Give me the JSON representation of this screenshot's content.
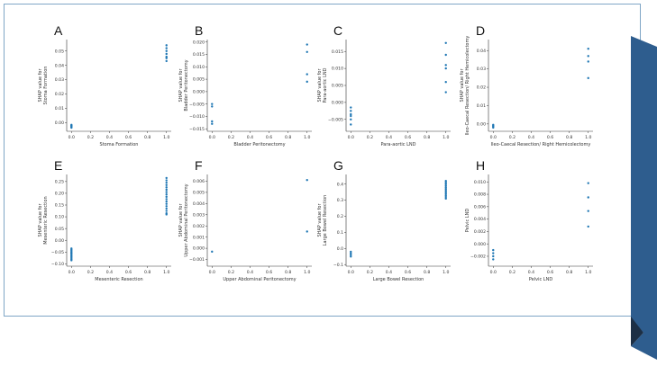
{
  "colors": {
    "point": "#1f77b4",
    "frame_border": "#7fa6c6",
    "ribbon": "#2e5d8e",
    "ribbon_shadow": "#1c2f45"
  },
  "chart_data": [
    {
      "panel": "A",
      "type": "scatter",
      "xlabel": "Stoma Formation",
      "ylabel": [
        "SHAP value for",
        "Stoma Formation"
      ],
      "xlim": [
        -0.05,
        1.05
      ],
      "ylim": [
        -0.006,
        0.058
      ],
      "xticks": [
        "0.0",
        "0.2",
        "0.4",
        "0.6",
        "0.8",
        "1.0"
      ],
      "yticks": [
        0,
        0.01,
        0.02,
        0.03,
        0.04,
        0.05
      ],
      "ytick_labels": [
        "0.00",
        "0.01",
        "0.02",
        "0.03",
        "0.04",
        "0.05"
      ],
      "points": [
        [
          0,
          -0.0015
        ],
        [
          0,
          -0.002
        ],
        [
          0,
          -0.0025
        ],
        [
          0,
          -0.003
        ],
        [
          0,
          -0.0035
        ],
        [
          1,
          0.054
        ],
        [
          1,
          0.052
        ],
        [
          1,
          0.05
        ],
        [
          1,
          0.048
        ],
        [
          1,
          0.046
        ],
        [
          1,
          0.045
        ],
        [
          1,
          0.043
        ]
      ]
    },
    {
      "panel": "B",
      "type": "scatter",
      "xlabel": "Bladder Peritonectomy",
      "ylabel": [
        "SHAP value for",
        "Bladder Peritonectomy"
      ],
      "xlim": [
        -0.05,
        1.05
      ],
      "ylim": [
        -0.016,
        0.021
      ],
      "xticks": [
        "0.0",
        "0.2",
        "0.4",
        "0.6",
        "0.8",
        "1.0"
      ],
      "yticks": [
        -0.015,
        -0.01,
        -0.005,
        0,
        0.005,
        0.01,
        0.015,
        0.02
      ],
      "ytick_labels": [
        "−0.015",
        "−0.010",
        "−0.005",
        "0.000",
        "0.005",
        "0.010",
        "0.015",
        "0.020"
      ],
      "points": [
        [
          0,
          -0.005
        ],
        [
          0,
          -0.006
        ],
        [
          0,
          -0.012
        ],
        [
          0,
          -0.013
        ],
        [
          1,
          0.019
        ],
        [
          1,
          0.016
        ],
        [
          1,
          0.007
        ],
        [
          1,
          0.004
        ]
      ]
    },
    {
      "panel": "C",
      "type": "scatter",
      "xlabel": "Para-aortic LND",
      "ylabel": [
        "SHAP value for",
        "Para-aortic LND"
      ],
      "xlim": [
        -0.05,
        1.05
      ],
      "ylim": [
        -0.0085,
        0.0185
      ],
      "xticks": [
        "0.0",
        "0.2",
        "0.4",
        "0.6",
        "0.8",
        "1.0"
      ],
      "yticks": [
        -0.005,
        0,
        0.005,
        0.01,
        0.015
      ],
      "ytick_labels": [
        "−0.005",
        "0.000",
        "0.005",
        "0.010",
        "0.015"
      ],
      "points": [
        [
          0,
          -0.0015
        ],
        [
          0,
          -0.0025
        ],
        [
          0,
          -0.0035
        ],
        [
          0,
          -0.004
        ],
        [
          0,
          -0.005
        ],
        [
          0,
          -0.0065
        ],
        [
          1,
          0.0175
        ],
        [
          1,
          0.014
        ],
        [
          1,
          0.011
        ],
        [
          1,
          0.01
        ],
        [
          1,
          0.006
        ],
        [
          1,
          0.003
        ]
      ]
    },
    {
      "panel": "D",
      "type": "scatter",
      "xlabel": "Ileo-Caecal Resection/ Right Hemicolectomy",
      "ylabel": [
        "SHAP value for",
        "Ileo-Caecal Resection/ Right Hemicolectomy"
      ],
      "xlim": [
        -0.05,
        1.05
      ],
      "ylim": [
        -0.004,
        0.046
      ],
      "xticks": [
        "0.0",
        "0.2",
        "0.4",
        "0.6",
        "0.8",
        "1.0"
      ],
      "yticks": [
        0,
        0.01,
        0.02,
        0.03,
        0.04
      ],
      "ytick_labels": [
        "0.00",
        "0.01",
        "0.02",
        "0.03",
        "0.04"
      ],
      "points": [
        [
          0,
          -0.0005
        ],
        [
          0,
          -0.001
        ],
        [
          0,
          -0.0015
        ],
        [
          0,
          -0.002
        ],
        [
          1,
          0.041
        ],
        [
          1,
          0.037
        ],
        [
          1,
          0.034
        ],
        [
          1,
          0.025
        ]
      ]
    },
    {
      "panel": "E",
      "type": "scatter",
      "xlabel": "Mesenteric Resection",
      "ylabel": [
        "SHAP value for",
        "Mesenteric Resection"
      ],
      "xlim": [
        -0.05,
        1.05
      ],
      "ylim": [
        -0.11,
        0.28
      ],
      "xticks": [
        "0.0",
        "0.2",
        "0.4",
        "0.6",
        "0.8",
        "1.0"
      ],
      "yticks": [
        -0.1,
        -0.05,
        0,
        0.05,
        0.1,
        0.15,
        0.2,
        0.25
      ],
      "ytick_labels": [
        "−0.10",
        "−0.05",
        "0.00",
        "0.05",
        "0.10",
        "0.15",
        "0.20",
        "0.25"
      ],
      "points": [
        [
          0,
          -0.035
        ],
        [
          0,
          -0.04
        ],
        [
          0,
          -0.045
        ],
        [
          0,
          -0.05
        ],
        [
          0,
          -0.055
        ],
        [
          0,
          -0.06
        ],
        [
          0,
          -0.065
        ],
        [
          0,
          -0.07
        ],
        [
          0,
          -0.075
        ],
        [
          0,
          -0.08
        ],
        [
          0,
          -0.085
        ],
        [
          1,
          0.265
        ],
        [
          1,
          0.255
        ],
        [
          1,
          0.245
        ],
        [
          1,
          0.235
        ],
        [
          1,
          0.225
        ],
        [
          1,
          0.215
        ],
        [
          1,
          0.205
        ],
        [
          1,
          0.195
        ],
        [
          1,
          0.185
        ],
        [
          1,
          0.175
        ],
        [
          1,
          0.165
        ],
        [
          1,
          0.155
        ],
        [
          1,
          0.145
        ],
        [
          1,
          0.135
        ],
        [
          1,
          0.125
        ],
        [
          1,
          0.115
        ],
        [
          1,
          0.11
        ]
      ]
    },
    {
      "panel": "F",
      "type": "scatter",
      "xlabel": "Upper Abdominal Peritonectomy",
      "ylabel": [
        "SHAP value for",
        "Upper Abdominal Peritonectomy"
      ],
      "xlim": [
        -0.05,
        1.05
      ],
      "ylim": [
        -0.0016,
        0.0066
      ],
      "xticks": [
        "0.0",
        "0.2",
        "0.4",
        "0.6",
        "0.8",
        "1.0"
      ],
      "yticks": [
        -0.001,
        0,
        0.001,
        0.002,
        0.003,
        0.004,
        0.005,
        0.006
      ],
      "ytick_labels": [
        "−0.001",
        "0.000",
        "0.001",
        "0.002",
        "0.003",
        "0.004",
        "0.005",
        "0.006"
      ],
      "points": [
        [
          0,
          -0.0003
        ],
        [
          1,
          0.0061
        ],
        [
          1,
          0.0015
        ]
      ]
    },
    {
      "panel": "G",
      "type": "scatter",
      "xlabel": "Large Bowel Resection",
      "ylabel": [
        "SHAP value for",
        "Large Bowel Resection"
      ],
      "xlim": [
        -0.05,
        1.05
      ],
      "ylim": [
        -0.11,
        0.46
      ],
      "xticks": [
        "0.0",
        "0.2",
        "0.4",
        "0.6",
        "0.8",
        "1.0"
      ],
      "yticks": [
        -0.1,
        0,
        0.1,
        0.2,
        0.3,
        0.4
      ],
      "ytick_labels": [
        "−0.1",
        "0.0",
        "0.1",
        "0.2",
        "0.3",
        "0.4"
      ],
      "points": [
        [
          0,
          -0.02
        ],
        [
          0,
          -0.03
        ],
        [
          0,
          -0.04
        ],
        [
          0,
          -0.05
        ],
        [
          1,
          0.42
        ],
        [
          1,
          0.41
        ],
        [
          1,
          0.4
        ],
        [
          1,
          0.39
        ],
        [
          1,
          0.38
        ],
        [
          1,
          0.37
        ],
        [
          1,
          0.36
        ],
        [
          1,
          0.35
        ],
        [
          1,
          0.34
        ],
        [
          1,
          0.33
        ],
        [
          1,
          0.32
        ],
        [
          1,
          0.31
        ]
      ]
    },
    {
      "panel": "H",
      "type": "scatter",
      "xlabel": "Pelvic LND",
      "ylabel": [
        "Pelvic LND"
      ],
      "xlim": [
        -0.05,
        1.05
      ],
      "ylim": [
        -0.0036,
        0.0112
      ],
      "xticks": [
        "0.0",
        "0.2",
        "0.4",
        "0.6",
        "0.8",
        "1.0"
      ],
      "yticks": [
        -0.002,
        0,
        0.002,
        0.004,
        0.006,
        0.008,
        0.01
      ],
      "ytick_labels": [
        "−0.002",
        "0.000",
        "0.002",
        "0.004",
        "0.006",
        "0.008",
        "0.010"
      ],
      "points": [
        [
          0,
          -0.001
        ],
        [
          0,
          -0.0015
        ],
        [
          0,
          -0.002
        ],
        [
          0,
          -0.0025
        ],
        [
          1,
          0.0098
        ],
        [
          1,
          0.0075
        ],
        [
          1,
          0.0053
        ],
        [
          1,
          0.0028
        ]
      ]
    }
  ]
}
